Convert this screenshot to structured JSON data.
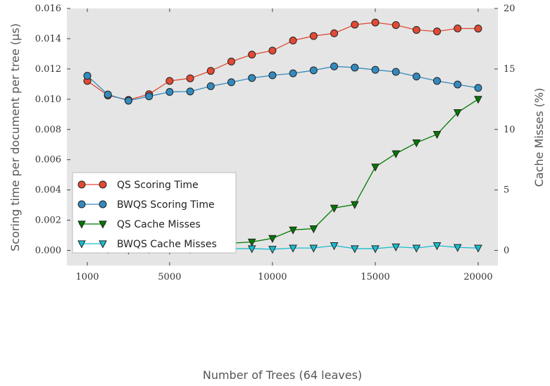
{
  "chart_data": {
    "type": "line",
    "title": "",
    "xlabel": "Number of Trees (64 leaves)",
    "ylabel": "Scoring time per document per tree (μs)",
    "y2label": "Cache Misses (%)",
    "xlim": [
      1000,
      20000
    ],
    "ylim": [
      -0.001,
      0.016
    ],
    "y2lim": [
      -1.25,
      20
    ],
    "x_ticks": [
      1000,
      5000,
      10000,
      15000,
      20000
    ],
    "x_tick_labels": [
      "1000",
      "5000",
      "10000",
      "15000",
      "20000"
    ],
    "y_ticks": [
      0.0,
      0.002,
      0.004,
      0.006,
      0.008,
      0.01,
      0.012,
      0.014,
      0.016
    ],
    "y_tick_labels": [
      "0.000",
      "0.002",
      "0.004",
      "0.006",
      "0.008",
      "0.010",
      "0.012",
      "0.014",
      "0.016"
    ],
    "y2_ticks": [
      0,
      5,
      10,
      15,
      20
    ],
    "y2_tick_labels": [
      "0",
      "5",
      "10",
      "15",
      "20"
    ],
    "grid": false,
    "background": "#e5e5e5",
    "legend_position": "center-left",
    "x": [
      1000,
      2000,
      3000,
      4000,
      5000,
      6000,
      7000,
      8000,
      9000,
      10000,
      11000,
      12000,
      13000,
      14000,
      15000,
      16000,
      17000,
      18000,
      19000,
      20000
    ],
    "series": [
      {
        "name": "QS Scoring Time",
        "axis": "left",
        "marker": "circle",
        "color": "#e24a33",
        "values": [
          0.01121,
          0.01025,
          0.00995,
          0.01033,
          0.01121,
          0.01138,
          0.01187,
          0.01249,
          0.01295,
          0.01321,
          0.01388,
          0.01418,
          0.01436,
          0.01493,
          0.01507,
          0.0149,
          0.01458,
          0.01448,
          0.01468,
          0.01467
        ]
      },
      {
        "name": "BWQS Scoring Time",
        "axis": "left",
        "marker": "circle",
        "color": "#348abd",
        "values": [
          0.01155,
          0.01031,
          0.0099,
          0.01019,
          0.01048,
          0.01051,
          0.01086,
          0.01112,
          0.0114,
          0.01158,
          0.01171,
          0.01191,
          0.01217,
          0.01209,
          0.01194,
          0.01181,
          0.0115,
          0.01121,
          0.01097,
          0.01075
        ]
      },
      {
        "name": "QS Cache Misses",
        "axis": "right",
        "marker": "triangle-down",
        "color": "#007a00",
        "values": [
          0.2,
          0.1,
          0.05,
          0.1,
          0.05,
          0.1,
          0.15,
          0.6,
          0.7,
          1.0,
          1.7,
          1.8,
          3.5,
          3.8,
          6.9,
          8.0,
          8.9,
          9.6,
          11.4,
          12.5
        ]
      },
      {
        "name": "BWQS Cache Misses",
        "axis": "right",
        "marker": "triangle-down",
        "color": "#17becf",
        "values": [
          0.2,
          0.1,
          0.05,
          0.1,
          0.1,
          0.1,
          0.15,
          0.15,
          0.15,
          0.1,
          0.2,
          0.2,
          0.4,
          0.15,
          0.15,
          0.3,
          0.2,
          0.4,
          0.25,
          0.2
        ]
      }
    ]
  }
}
